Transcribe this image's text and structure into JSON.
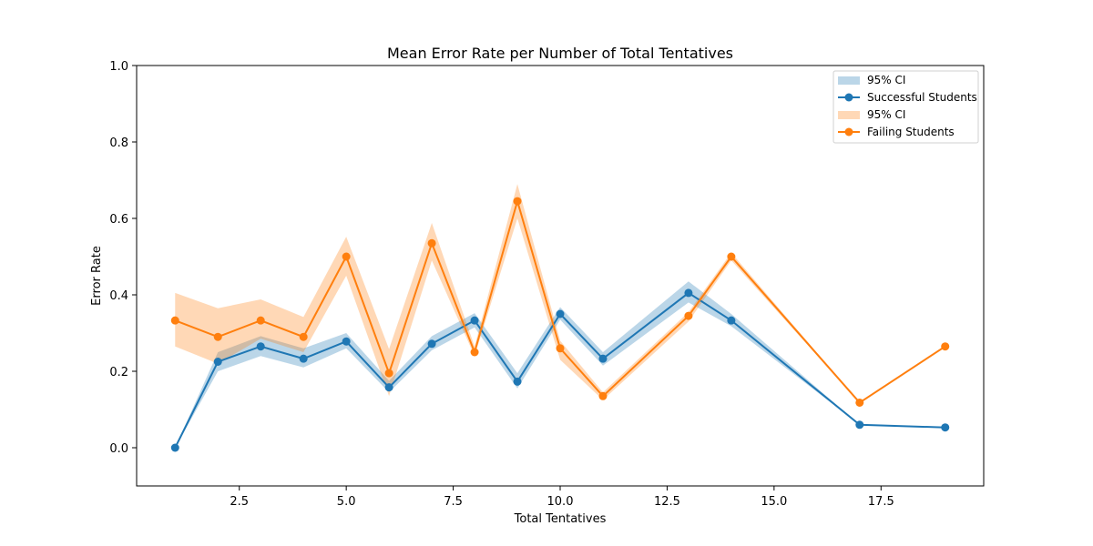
{
  "chart_data": {
    "type": "line",
    "title": "Mean Error Rate per Number of Total Tentatives",
    "xlabel": "Total Tentatives",
    "ylabel": "Error Rate",
    "xlim": [
      0.1,
      19.9
    ],
    "ylim": [
      -0.1,
      1.0
    ],
    "xticks": [
      2.5,
      5.0,
      7.5,
      10.0,
      12.5,
      15.0,
      17.5
    ],
    "xtick_labels": [
      "2.5",
      "5.0",
      "7.5",
      "10.0",
      "12.5",
      "15.0",
      "17.5"
    ],
    "yticks": [
      0.0,
      0.2,
      0.4,
      0.6,
      0.8,
      1.0
    ],
    "ytick_labels": [
      "0.0",
      "0.2",
      "0.4",
      "0.6",
      "0.8",
      "1.0"
    ],
    "grid": false,
    "legend_position": "top-right",
    "series": [
      {
        "name": "Successful Students",
        "ci_name": "95% CI",
        "color": "#1f77b4",
        "ci_color": "#1f77b4",
        "x": [
          1,
          2,
          3,
          4,
          5,
          6,
          7,
          8,
          9,
          10,
          11,
          13,
          14,
          17,
          19
        ],
        "y": [
          0.0,
          0.225,
          0.265,
          0.233,
          0.278,
          0.158,
          0.272,
          0.333,
          0.173,
          0.35,
          0.233,
          0.405,
          0.333,
          0.06,
          0.053
        ],
        "ci_lower": [
          0.0,
          0.2,
          0.24,
          0.21,
          0.26,
          0.145,
          0.255,
          0.315,
          0.155,
          0.335,
          0.215,
          0.38,
          0.318,
          0.06,
          0.053
        ],
        "ci_upper": [
          0.0,
          0.25,
          0.292,
          0.26,
          0.3,
          0.175,
          0.292,
          0.352,
          0.195,
          0.368,
          0.25,
          0.435,
          0.35,
          0.06,
          0.053
        ]
      },
      {
        "name": "Failing Students",
        "ci_name": "95% CI",
        "color": "#ff7f0e",
        "ci_color": "#ff7f0e",
        "x": [
          1,
          2,
          3,
          4,
          5,
          6,
          7,
          8,
          9,
          10,
          11,
          13,
          14,
          17,
          19
        ],
        "y": [
          0.333,
          0.29,
          0.333,
          0.29,
          0.5,
          0.195,
          0.535,
          0.25,
          0.645,
          0.26,
          0.135,
          0.345,
          0.5,
          0.118,
          0.265
        ],
        "ci_lower": [
          0.265,
          0.22,
          0.285,
          0.25,
          0.45,
          0.135,
          0.49,
          0.24,
          0.6,
          0.23,
          0.125,
          0.33,
          0.49,
          0.118,
          0.265
        ],
        "ci_upper": [
          0.405,
          0.365,
          0.388,
          0.342,
          0.552,
          0.258,
          0.588,
          0.265,
          0.69,
          0.28,
          0.145,
          0.355,
          0.51,
          0.118,
          0.265
        ]
      }
    ]
  }
}
